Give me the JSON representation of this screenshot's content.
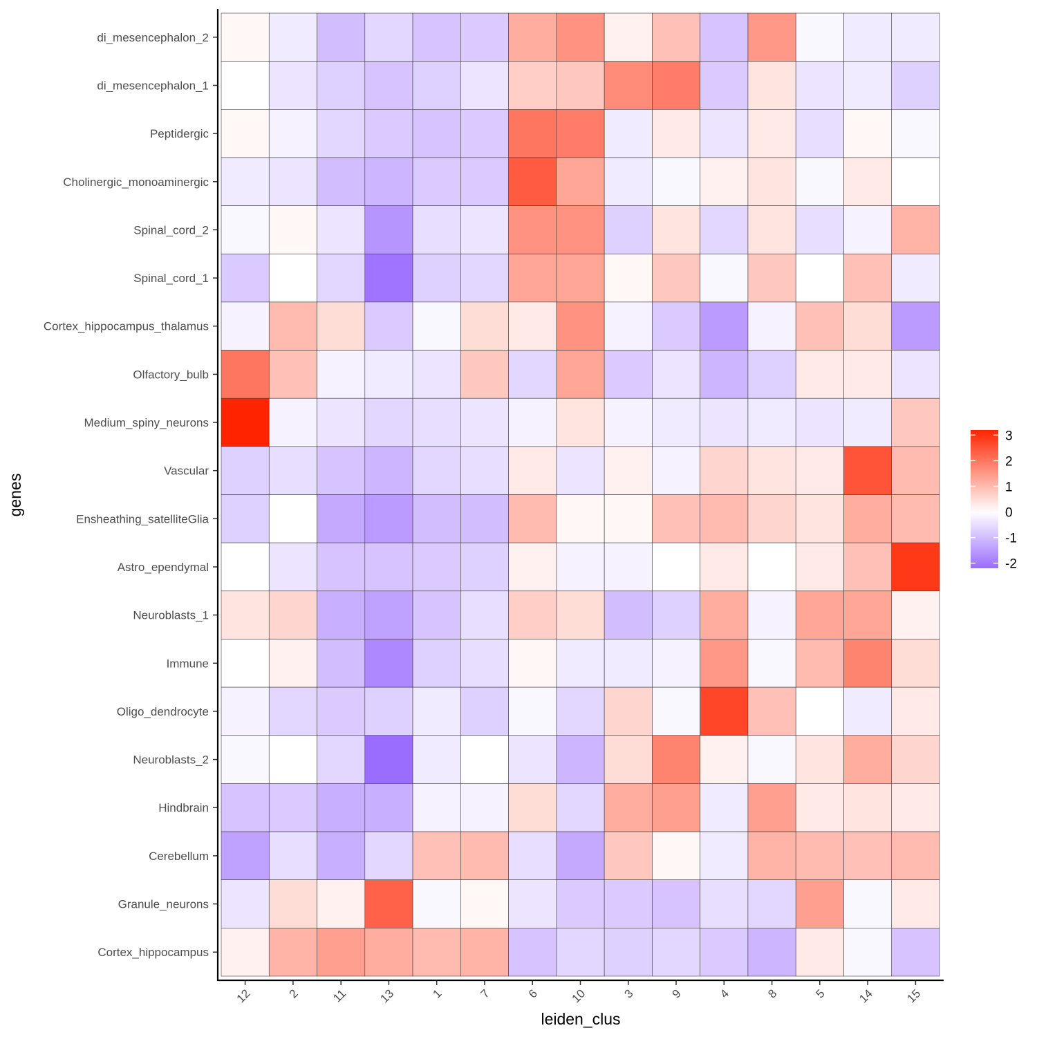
{
  "chart_data": {
    "type": "heatmap",
    "xlabel": "leiden_clus",
    "ylabel": "genes",
    "x": [
      "12",
      "2",
      "11",
      "13",
      "1",
      "7",
      "6",
      "10",
      "3",
      "9",
      "4",
      "8",
      "5",
      "14",
      "15"
    ],
    "y": [
      "di_mesencephalon_2",
      "di_mesencephalon_1",
      "Peptidergic",
      "Cholinergic_monoaminergic",
      "Spinal_cord_2",
      "Spinal_cord_1",
      "Cortex_hippocampus_thalamus",
      "Olfactory_bulb",
      "Medium_spiny_neurons",
      "Vascular",
      "Ensheathing_satelliteGlia",
      "Astro_ependymal",
      "Neuroblasts_1",
      "Immune",
      "Oligo_dendrocyte",
      "Neuroblasts_2",
      "Hindbrain",
      "Cerebellum",
      "Granule_neurons",
      "Cortex_hippocampus"
    ],
    "values": [
      [
        0.1,
        -0.3,
        -1.0,
        -0.6,
        -0.9,
        -0.8,
        1.2,
        1.6,
        0.2,
        0.9,
        -0.9,
        1.5,
        -0.1,
        -0.3,
        -0.3
      ],
      [
        0.0,
        -0.4,
        -0.7,
        -0.9,
        -0.7,
        -0.4,
        0.7,
        0.8,
        1.7,
        1.9,
        -0.8,
        0.4,
        -0.4,
        -0.3,
        -0.7
      ],
      [
        0.1,
        -0.2,
        -0.6,
        -0.8,
        -0.9,
        -0.8,
        2.0,
        1.9,
        -0.3,
        0.3,
        -0.4,
        0.3,
        -0.5,
        0.1,
        -0.1
      ],
      [
        -0.3,
        -0.4,
        -1.0,
        -1.1,
        -0.8,
        -0.8,
        2.4,
        1.3,
        -0.3,
        -0.1,
        0.2,
        0.4,
        -0.1,
        0.3,
        0.0
      ],
      [
        -0.1,
        0.1,
        -0.4,
        -1.6,
        -0.5,
        -0.4,
        1.6,
        1.6,
        -0.7,
        0.4,
        -0.6,
        0.4,
        -0.5,
        -0.2,
        1.1
      ],
      [
        -0.8,
        0.0,
        -0.6,
        -2.1,
        -0.7,
        -0.6,
        1.3,
        1.3,
        0.1,
        0.8,
        -0.1,
        0.8,
        0.0,
        0.9,
        -0.3
      ],
      [
        -0.2,
        1.0,
        0.5,
        -0.8,
        -0.1,
        0.5,
        0.3,
        1.6,
        -0.2,
        -0.8,
        -1.5,
        -0.2,
        0.9,
        0.5,
        -1.5
      ],
      [
        2.0,
        0.9,
        -0.2,
        -0.3,
        -0.4,
        0.8,
        -0.6,
        1.3,
        -0.8,
        -0.4,
        -1.1,
        -0.7,
        0.3,
        0.3,
        -0.4
      ],
      [
        3.2,
        -0.2,
        -0.4,
        -0.6,
        -0.5,
        -0.4,
        -0.2,
        0.4,
        -0.2,
        -0.3,
        -0.4,
        -0.3,
        -0.4,
        -0.3,
        0.8
      ],
      [
        -0.7,
        -0.5,
        -0.9,
        -1.1,
        -0.6,
        -0.5,
        0.3,
        -0.4,
        0.2,
        -0.2,
        0.6,
        0.4,
        0.3,
        2.5,
        1.0
      ],
      [
        -0.7,
        0.0,
        -1.3,
        -1.5,
        -1.0,
        -1.0,
        1.0,
        0.1,
        0.1,
        0.9,
        1.0,
        0.6,
        0.4,
        1.2,
        1.0
      ],
      [
        0.0,
        -0.4,
        -0.9,
        -0.9,
        -0.8,
        -0.7,
        0.2,
        -0.2,
        -0.2,
        0.0,
        0.3,
        0.0,
        0.3,
        0.9,
        2.9
      ],
      [
        0.4,
        0.6,
        -1.2,
        -1.4,
        -0.9,
        -0.5,
        0.7,
        0.5,
        -1.0,
        -0.7,
        1.2,
        -0.2,
        1.3,
        1.3,
        0.2
      ],
      [
        0.0,
        0.2,
        -1.0,
        -1.8,
        -0.7,
        -0.5,
        0.1,
        -0.3,
        -0.3,
        -0.2,
        1.5,
        -0.1,
        1.0,
        1.8,
        0.5
      ],
      [
        -0.2,
        -0.6,
        -0.8,
        -0.7,
        -0.3,
        -0.7,
        -0.1,
        -0.6,
        0.6,
        -0.1,
        2.7,
        0.9,
        0.0,
        -0.3,
        0.3
      ],
      [
        -0.1,
        0.0,
        -0.6,
        -2.2,
        -0.3,
        0.0,
        -0.4,
        -1.1,
        0.5,
        1.8,
        0.2,
        -0.1,
        0.4,
        1.2,
        0.6
      ],
      [
        -0.9,
        -0.8,
        -1.2,
        -1.2,
        -0.2,
        -0.2,
        0.5,
        -0.6,
        1.2,
        1.4,
        -0.3,
        1.4,
        0.3,
        0.4,
        0.3
      ],
      [
        -1.4,
        -0.5,
        -1.2,
        -0.6,
        0.9,
        1.0,
        -0.5,
        -1.3,
        0.8,
        0.1,
        -0.3,
        1.1,
        1.0,
        0.9,
        1.0
      ],
      [
        -0.4,
        0.5,
        0.2,
        2.3,
        -0.1,
        0.1,
        -0.4,
        -0.8,
        -0.8,
        -0.9,
        -0.5,
        -0.6,
        1.4,
        -0.1,
        0.3
      ],
      [
        0.2,
        1.1,
        1.4,
        1.2,
        1.0,
        1.1,
        -0.9,
        -0.6,
        -0.7,
        -0.6,
        -0.8,
        -1.1,
        0.3,
        -0.1,
        -0.9
      ]
    ],
    "colorbar": {
      "ticks": [
        3,
        2,
        1,
        0,
        -1,
        -2
      ],
      "range": [
        -2.2,
        3.2
      ],
      "low_color": "#9b6dff",
      "mid_color": "#ffffff",
      "high_color": "#ff2400"
    }
  }
}
